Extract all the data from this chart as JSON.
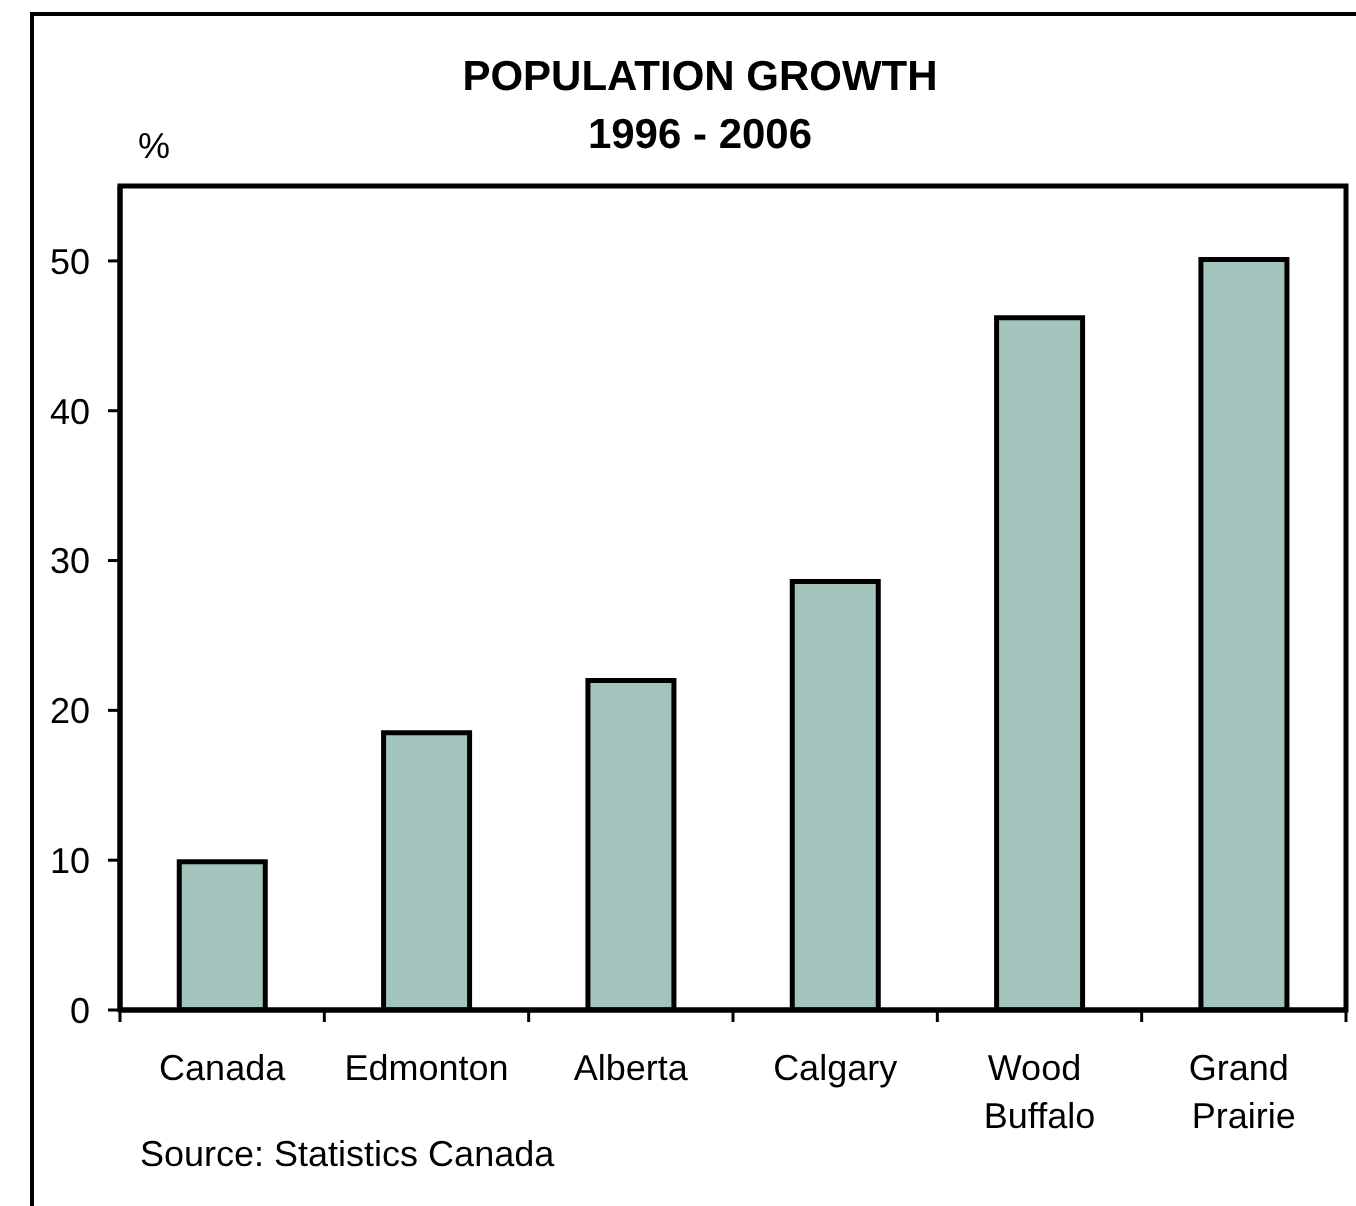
{
  "chart_data": {
    "type": "bar",
    "title": "POPULATION GROWTH",
    "subtitle": "1996 - 2006",
    "ylabel": "%",
    "categories": [
      "Canada",
      "Edmonton",
      "Alberta",
      "Calgary",
      "Wood Buffalo",
      "Grand Prairie"
    ],
    "values": [
      9.9,
      18.5,
      22.0,
      28.6,
      46.2,
      50.1
    ],
    "color": "#a3c4bc",
    "ylim": [
      0,
      55
    ],
    "yticks": [
      0,
      10,
      20,
      30,
      40,
      50
    ],
    "annotations": [
      "Source: Statistics Canada"
    ]
  }
}
